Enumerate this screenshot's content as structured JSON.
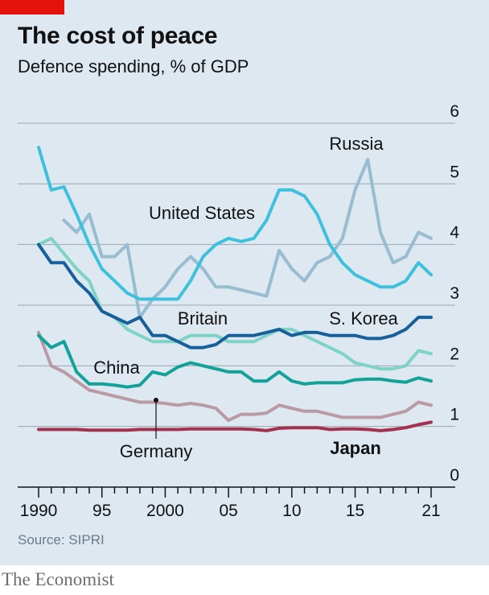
{
  "header": {
    "title": "The cost of peace",
    "subtitle": "Defence spending, % of GDP"
  },
  "footer": {
    "source": "Source: SIPRI",
    "brand": "The Economist"
  },
  "colors": {
    "background": "#dde8f0",
    "accent_tab": "#e3120b",
    "grid": "#9aa9b4"
  },
  "chart_data": {
    "type": "line",
    "title": "The cost of peace",
    "subtitle": "Defence spending, % of GDP",
    "xlabel": "",
    "ylabel": "",
    "xlim": [
      1990,
      2021
    ],
    "ylim": [
      0,
      6
    ],
    "grid": true,
    "y_axis_side": "right",
    "x_ticks": [
      1990,
      1995,
      2000,
      2005,
      2010,
      2015,
      2021
    ],
    "x_tick_labels": [
      "1990",
      "95",
      "2000",
      "05",
      "10",
      "15",
      "21"
    ],
    "y_ticks": [
      0,
      1,
      2,
      3,
      4,
      5,
      6
    ],
    "y_tick_labels": [
      "0",
      "1",
      "2",
      "3",
      "4",
      "5",
      "6"
    ],
    "x": [
      1990,
      1991,
      1992,
      1993,
      1994,
      1995,
      1996,
      1997,
      1998,
      1999,
      2000,
      2001,
      2002,
      2003,
      2004,
      2005,
      2006,
      2007,
      2008,
      2009,
      2010,
      2011,
      2012,
      2013,
      2014,
      2015,
      2016,
      2017,
      2018,
      2019,
      2020,
      2021
    ],
    "series": [
      {
        "name": "United States",
        "color": "#3ec1dc",
        "values": [
          5.6,
          4.9,
          4.95,
          4.5,
          4.0,
          3.6,
          3.4,
          3.2,
          3.1,
          3.1,
          3.1,
          3.1,
          3.4,
          3.8,
          4.0,
          4.1,
          4.05,
          4.1,
          4.4,
          4.9,
          4.9,
          4.8,
          4.5,
          4.0,
          3.7,
          3.5,
          3.4,
          3.3,
          3.3,
          3.4,
          3.7,
          3.5
        ]
      },
      {
        "name": "Russia",
        "color": "#98bcd0",
        "values": [
          null,
          null,
          4.4,
          4.2,
          4.5,
          3.8,
          3.8,
          4.0,
          2.8,
          3.1,
          3.3,
          3.6,
          3.8,
          3.6,
          3.3,
          3.3,
          3.25,
          3.2,
          3.15,
          3.9,
          3.6,
          3.4,
          3.7,
          3.8,
          4.1,
          4.9,
          5.4,
          4.2,
          3.7,
          3.8,
          4.2,
          4.1
        ]
      },
      {
        "name": "Britain",
        "color": "#7ed3c6",
        "values": [
          4.0,
          4.1,
          3.85,
          3.6,
          3.4,
          2.9,
          2.8,
          2.6,
          2.5,
          2.4,
          2.4,
          2.4,
          2.5,
          2.5,
          2.5,
          2.4,
          2.4,
          2.4,
          2.5,
          2.6,
          2.6,
          2.5,
          2.4,
          2.3,
          2.2,
          2.05,
          2.0,
          1.95,
          1.95,
          2.0,
          2.25,
          2.2
        ]
      },
      {
        "name": "S. Korea",
        "color": "#17609c",
        "values": [
          4.0,
          3.7,
          3.7,
          3.4,
          3.2,
          2.9,
          2.8,
          2.7,
          2.8,
          2.5,
          2.5,
          2.4,
          2.3,
          2.3,
          2.35,
          2.5,
          2.5,
          2.5,
          2.55,
          2.6,
          2.5,
          2.55,
          2.55,
          2.5,
          2.5,
          2.5,
          2.45,
          2.45,
          2.5,
          2.6,
          2.8,
          2.8
        ]
      },
      {
        "name": "China",
        "color": "#13a199",
        "values": [
          2.5,
          2.3,
          2.4,
          1.9,
          1.7,
          1.7,
          1.68,
          1.65,
          1.68,
          1.9,
          1.85,
          1.98,
          2.05,
          2.0,
          1.95,
          1.9,
          1.9,
          1.75,
          1.75,
          1.9,
          1.75,
          1.7,
          1.72,
          1.72,
          1.72,
          1.77,
          1.78,
          1.78,
          1.75,
          1.73,
          1.8,
          1.75
        ]
      },
      {
        "name": "Germany",
        "color": "#ba9aa5",
        "values": [
          2.55,
          2.0,
          1.9,
          1.75,
          1.6,
          1.55,
          1.5,
          1.45,
          1.4,
          1.4,
          1.38,
          1.35,
          1.38,
          1.35,
          1.3,
          1.1,
          1.2,
          1.2,
          1.22,
          1.35,
          1.3,
          1.25,
          1.25,
          1.2,
          1.15,
          1.15,
          1.15,
          1.15,
          1.2,
          1.25,
          1.4,
          1.35
        ]
      },
      {
        "name": "Japan",
        "color": "#a3324e",
        "values": [
          0.95,
          0.95,
          0.95,
          0.95,
          0.94,
          0.94,
          0.94,
          0.94,
          0.95,
          0.95,
          0.95,
          0.95,
          0.96,
          0.96,
          0.96,
          0.96,
          0.96,
          0.95,
          0.93,
          0.97,
          0.98,
          0.98,
          0.98,
          0.95,
          0.96,
          0.96,
          0.95,
          0.93,
          0.95,
          0.98,
          1.03,
          1.07
        ]
      }
    ],
    "annotations": [
      {
        "text": "Russia",
        "series": "Russia"
      },
      {
        "text": "United States",
        "series": "United States"
      },
      {
        "text": "Britain",
        "series": "Britain"
      },
      {
        "text": "S. Korea",
        "series": "S. Korea"
      },
      {
        "text": "China",
        "series": "China"
      },
      {
        "text": "Germany",
        "series": "Germany"
      },
      {
        "text": "Japan",
        "series": "Japan",
        "bold": true
      }
    ]
  }
}
